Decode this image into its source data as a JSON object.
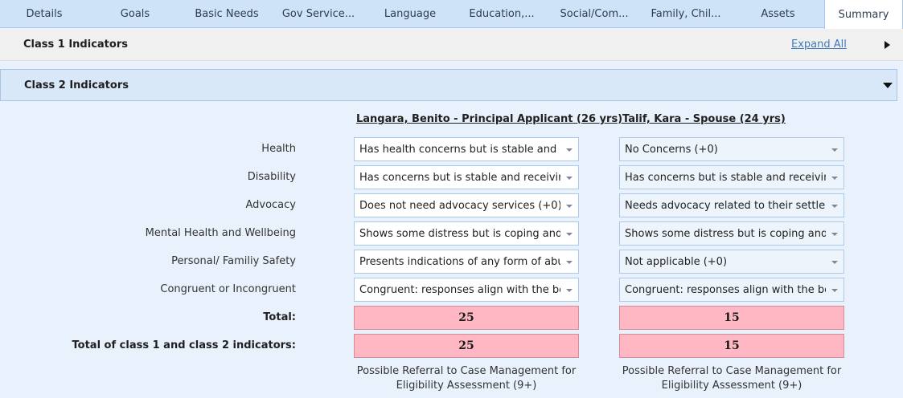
{
  "tabs": [
    {
      "label": "Details"
    },
    {
      "label": "Goals"
    },
    {
      "label": "Basic Needs"
    },
    {
      "label": "Gov Service..."
    },
    {
      "label": "Language"
    },
    {
      "label": "Education,..."
    },
    {
      "label": "Social/Com..."
    },
    {
      "label": "Family, Chil..."
    },
    {
      "label": "Assets"
    },
    {
      "label": "Summary",
      "active": true
    }
  ],
  "class1": {
    "title": "Class 1 Indicators",
    "expand_all": "Expand All"
  },
  "class2": {
    "title": "Class 2 Indicators",
    "persons": [
      {
        "name": "Langara, Benito - Principal Applicant (26 yrs)"
      },
      {
        "name": "Talif, Kara - Spouse (24 yrs)"
      }
    ],
    "rows": [
      {
        "label": "Health",
        "values": [
          "Has health concerns but is stable and m",
          "No Concerns (+0)"
        ]
      },
      {
        "label": "Disability",
        "values": [
          "Has concerns but is stable and receiving",
          "Has concerns but is stable and receiving"
        ]
      },
      {
        "label": "Advocacy",
        "values": [
          "Does not need advocacy services (+0)",
          "Needs advocacy related to their settlem"
        ]
      },
      {
        "label": "Mental Health and Wellbeing",
        "values": [
          "Shows some distress but is coping and",
          "Shows some distress but is coping and"
        ]
      },
      {
        "label": "Personal/ Familiy Safety",
        "values": [
          "Presents indications of any form of abus",
          "Not applicable (+0)"
        ]
      },
      {
        "label": "Congruent or Incongruent",
        "values": [
          "Congruent: responses align with the be",
          "Congruent: responses align with the be"
        ]
      }
    ],
    "total_label": "Total:",
    "totals": [
      "25",
      "15"
    ],
    "grand_total_label": "Total of class 1 and class 2 indicators:",
    "grand_totals": [
      "25",
      "15"
    ],
    "notes": [
      "Possible Referral to Case Management for Eligibility Assessment (9+)",
      "Possible Referral to Case Management for Eligibility Assessment (9+)"
    ]
  },
  "colors": {
    "score_bg": "#ffb8c3",
    "tab_bar": "#cfe3f8",
    "link": "#3f7bbf"
  }
}
